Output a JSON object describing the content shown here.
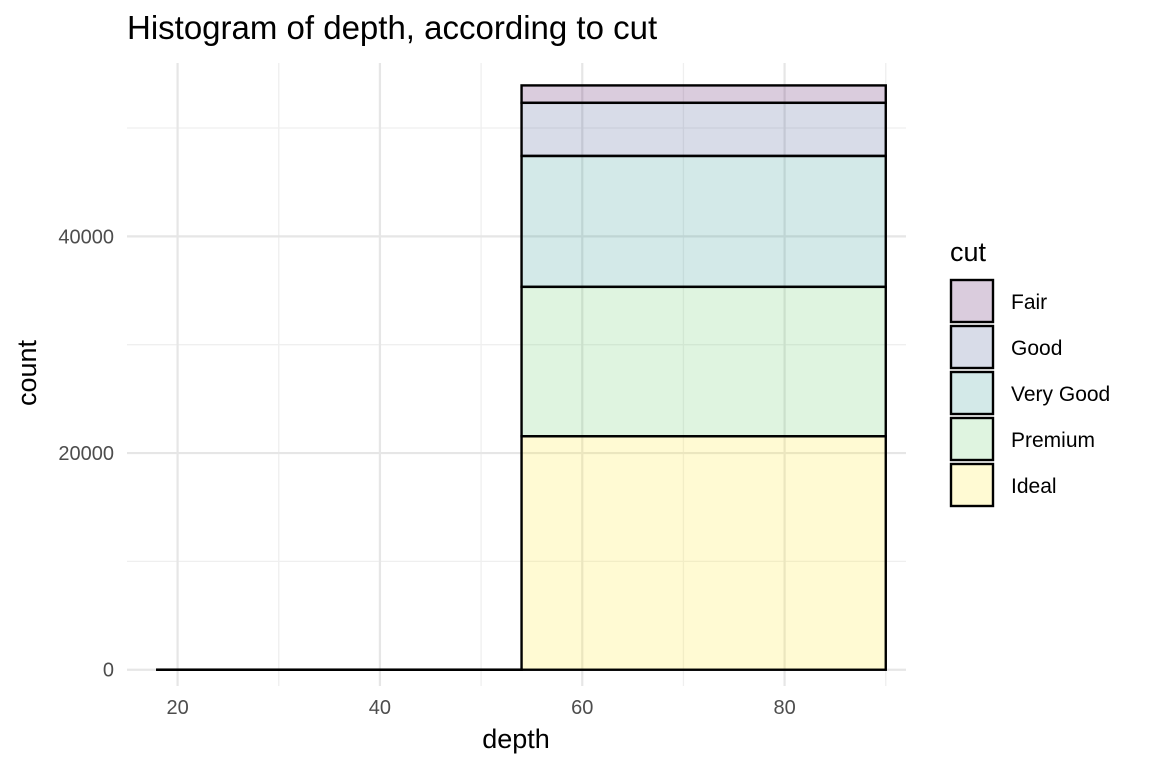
{
  "chart_data": {
    "type": "bar",
    "subtype": "stacked-histogram",
    "title": "Histogram of depth, according to cut",
    "xlabel": "depth",
    "ylabel": "count",
    "xlim": [
      15,
      92
    ],
    "ylim": [
      -1500,
      56000
    ],
    "x_ticks": [
      20,
      40,
      60,
      80
    ],
    "x_minor_ticks": [
      30,
      50,
      70,
      90
    ],
    "y_ticks": [
      0,
      20000,
      40000
    ],
    "y_minor_ticks": [
      10000,
      30000,
      50000
    ],
    "grid": true,
    "legend": {
      "title": "cut",
      "position": "right",
      "entries": [
        "Fair",
        "Good",
        "Very Good",
        "Premium",
        "Ideal"
      ]
    },
    "bins": [
      {
        "x0": 18,
        "x1": 54
      },
      {
        "x0": 54,
        "x1": 90
      }
    ],
    "series": [
      {
        "name": "Ideal",
        "color": "#FDE725",
        "values": [
          0,
          21551
        ]
      },
      {
        "name": "Premium",
        "color": "#5DC863",
        "values": [
          2,
          13789
        ]
      },
      {
        "name": "Very Good",
        "color": "#21908C",
        "values": [
          0,
          12082
        ]
      },
      {
        "name": "Good",
        "color": "#3B528B",
        "values": [
          3,
          4903
        ]
      },
      {
        "name": "Fair",
        "color": "#440154",
        "values": [
          4,
          1606
        ]
      }
    ],
    "fill_opacity": 0.2,
    "outline_color": "#000000"
  }
}
